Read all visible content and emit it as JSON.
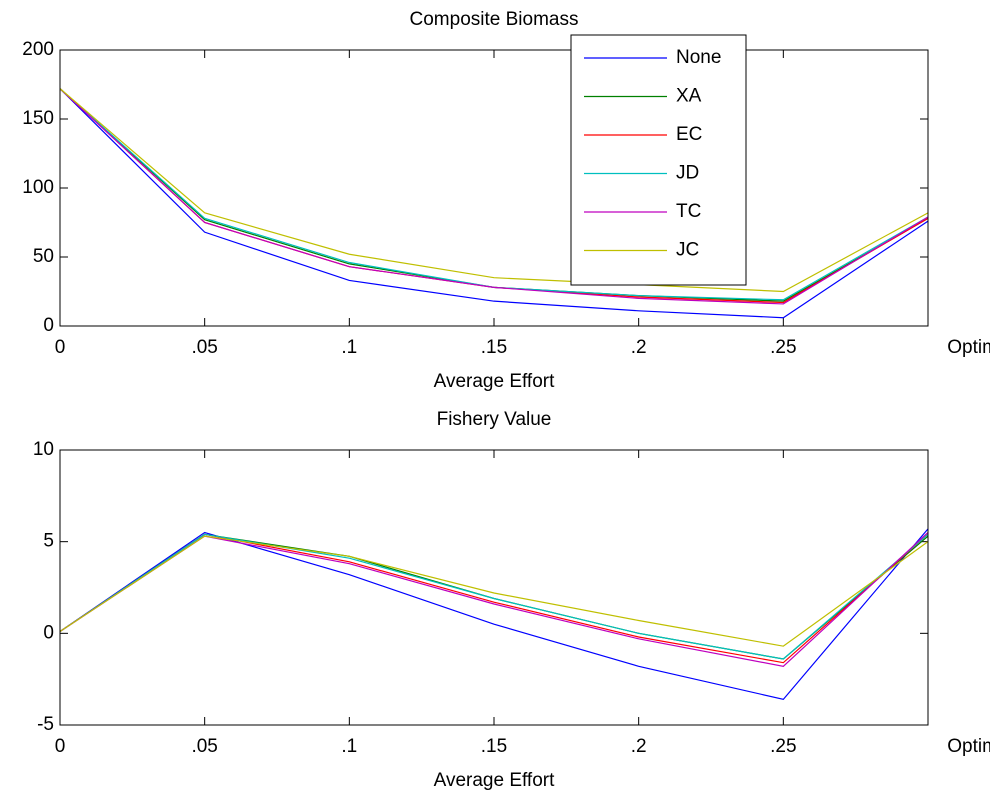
{
  "chart_data": [
    {
      "type": "line",
      "title": "Composite Biomass",
      "x_label": "Average Effort",
      "categories": [
        "0",
        ".05",
        ".1",
        ".15",
        ".2",
        ".25",
        "Optimized"
      ],
      "ylim": [
        0,
        200
      ],
      "yticks": [
        0,
        50,
        100,
        150,
        200
      ],
      "legend": "upper right",
      "series": [
        {
          "name": "None",
          "color": "#0000ff",
          "values": [
            172,
            68,
            33,
            18,
            11,
            6,
            76
          ]
        },
        {
          "name": "XA",
          "color": "#008000",
          "values": [
            172,
            77,
            45,
            28,
            22,
            18,
            78
          ]
        },
        {
          "name": "EC",
          "color": "#ff0000",
          "values": [
            172,
            75,
            43,
            28,
            21,
            17,
            78
          ]
        },
        {
          "name": "JD",
          "color": "#00bfbf",
          "values": [
            172,
            78,
            46,
            28,
            22,
            19,
            79
          ]
        },
        {
          "name": "TC",
          "color": "#bf00bf",
          "values": [
            172,
            75,
            43,
            28,
            20,
            16,
            79
          ]
        },
        {
          "name": "JC",
          "color": "#bfbf00",
          "values": [
            172,
            82,
            52,
            35,
            30,
            25,
            82
          ]
        }
      ]
    },
    {
      "type": "line",
      "title": "Fishery Value",
      "x_label": "Average Effort",
      "categories": [
        "0",
        ".05",
        ".1",
        ".15",
        ".2",
        ".25",
        "Optimized"
      ],
      "ylim": [
        -5,
        10
      ],
      "yticks": [
        -5,
        0,
        5,
        10
      ],
      "series": [
        {
          "color": "#0000ff",
          "values": [
            0.1,
            5.5,
            3.2,
            0.5,
            -1.8,
            -3.6,
            5.7
          ]
        },
        {
          "color": "#008000",
          "values": [
            0.1,
            5.4,
            4.2,
            1.9,
            0.0,
            -1.4,
            5.3
          ]
        },
        {
          "color": "#ff0000",
          "values": [
            0.1,
            5.4,
            3.9,
            1.7,
            -0.2,
            -1.6,
            5.4
          ]
        },
        {
          "color": "#00bfbf",
          "values": [
            0.1,
            5.4,
            4.1,
            1.9,
            0.0,
            -1.4,
            5.4
          ]
        },
        {
          "color": "#bf00bf",
          "values": [
            0.1,
            5.3,
            3.8,
            1.6,
            -0.3,
            -1.8,
            5.5
          ]
        },
        {
          "color": "#bfbf00",
          "values": [
            0.1,
            5.3,
            4.2,
            2.2,
            0.7,
            -0.7,
            5.0
          ]
        }
      ]
    }
  ]
}
